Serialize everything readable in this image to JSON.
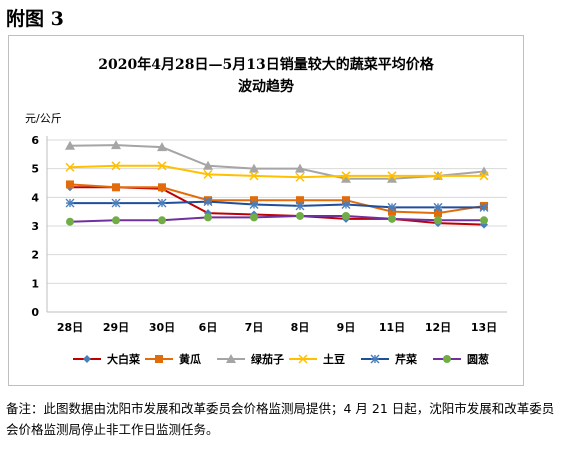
{
  "figure_label": "附图 3",
  "note": "备注：此图数据由沈阳市发展和改革委员会价格监测局提供；4 月 21 日起，沈阳市发展和改革委员会价格监测局停止非工作日监测任务。",
  "chart_data": {
    "type": "line",
    "title": "2020年4月28日—5月13日销量较大的蔬菜平均价格",
    "subtitle": "波动趋势",
    "ylabel": "元/公斤",
    "xlabel": "",
    "ylim": [
      0,
      6
    ],
    "yticks": [
      "0",
      "1",
      "2",
      "3",
      "4",
      "5",
      "6"
    ],
    "categories": [
      "28日",
      "29日",
      "30日",
      "6日",
      "7日",
      "8日",
      "9日",
      "11日",
      "12日",
      "13日"
    ],
    "grid": true,
    "legend_position": "bottom",
    "series": [
      {
        "name": "大白菜",
        "color": "#c00000",
        "marker": "diamond",
        "marker_color": "#4a7ebb",
        "values": [
          4.35,
          4.35,
          4.3,
          3.45,
          3.4,
          3.35,
          3.25,
          3.25,
          3.1,
          3.05
        ]
      },
      {
        "name": "黄瓜",
        "color": "#e36c0a",
        "marker": "square",
        "marker_color": "#e36c0a",
        "values": [
          4.45,
          4.35,
          4.35,
          3.9,
          3.9,
          3.9,
          3.9,
          3.5,
          3.45,
          3.7
        ]
      },
      {
        "name": "绿茄子",
        "color": "#a5a5a5",
        "marker": "triangle",
        "marker_color": "#a5a5a5",
        "values": [
          5.8,
          5.82,
          5.75,
          5.1,
          5.0,
          5.0,
          4.65,
          4.65,
          4.75,
          4.9
        ]
      },
      {
        "name": "土豆",
        "color": "#ffc000",
        "marker": "x",
        "marker_color": "#ffc000",
        "values": [
          5.05,
          5.1,
          5.1,
          4.8,
          4.75,
          4.7,
          4.75,
          4.75,
          4.75,
          4.75
        ]
      },
      {
        "name": "芹菜",
        "color": "#1f4e9c",
        "marker": "star",
        "marker_color": "#4a7ebb",
        "values": [
          3.8,
          3.8,
          3.8,
          3.85,
          3.75,
          3.7,
          3.75,
          3.65,
          3.65,
          3.65
        ]
      },
      {
        "name": "圆葱",
        "color": "#7030a0",
        "marker": "circle",
        "marker_color": "#70ad47",
        "values": [
          3.15,
          3.2,
          3.2,
          3.3,
          3.3,
          3.35,
          3.35,
          3.25,
          3.2,
          3.2
        ]
      }
    ]
  }
}
